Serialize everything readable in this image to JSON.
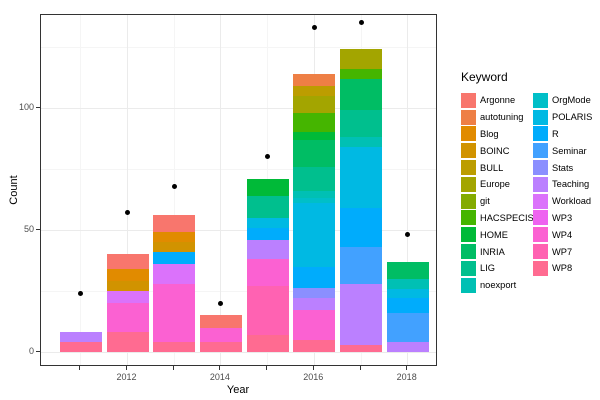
{
  "legend": {
    "title": "Keyword",
    "items": [
      {
        "label": "Argonne",
        "color": "#F8766D"
      },
      {
        "label": "autotuning",
        "color": "#EE7F45"
      },
      {
        "label": "Blog",
        "color": "#E18B00"
      },
      {
        "label": "BOINC",
        "color": "#D19300"
      },
      {
        "label": "BULL",
        "color": "#BC9D00"
      },
      {
        "label": "Europe",
        "color": "#A3A500"
      },
      {
        "label": "git",
        "color": "#84AB00"
      },
      {
        "label": "HACSPECIS",
        "color": "#45B500"
      },
      {
        "label": "HOME",
        "color": "#00BA38"
      },
      {
        "label": "INRIA",
        "color": "#00BD64"
      },
      {
        "label": "LIG",
        "color": "#00BF8E"
      },
      {
        "label": "noexport",
        "color": "#00C0B4"
      },
      {
        "label": "OrgMode",
        "color": "#00BFC8"
      },
      {
        "label": "POLARIS",
        "color": "#00B9E3"
      },
      {
        "label": "R",
        "color": "#00ACFC"
      },
      {
        "label": "Seminar",
        "color": "#42A1FF"
      },
      {
        "label": "Stats",
        "color": "#8B8FFF"
      },
      {
        "label": "Teaching",
        "color": "#BB80FF"
      },
      {
        "label": "Workload",
        "color": "#DB72FB"
      },
      {
        "label": "WP3",
        "color": "#EE63F0"
      },
      {
        "label": "WP4",
        "color": "#FB61D2"
      },
      {
        "label": "WP7",
        "color": "#FF62B2"
      },
      {
        "label": "WP8",
        "color": "#FF6B91"
      }
    ]
  },
  "chart_data": {
    "type": "bar",
    "stacked": true,
    "title": "",
    "xlabel": "Year",
    "ylabel": "Count",
    "all_years": [
      2011,
      2012,
      2013,
      2014,
      2015,
      2016,
      2017,
      2018
    ],
    "x_labeled_years": [
      2012,
      2014,
      2016,
      2018
    ],
    "x_tick_labels": [
      "2012",
      "2014",
      "2016",
      "2018"
    ],
    "y_tick_labels": [
      "0",
      "50",
      "100"
    ],
    "y_major_ticks": [
      0,
      50,
      100
    ],
    "y_minor_gridlines": [
      25,
      75,
      125
    ],
    "ylim": [
      -6,
      138
    ],
    "grid": true,
    "legend_position": "right",
    "point_color": "#000000",
    "bars": [
      {
        "year": 2011,
        "total": 8,
        "segments": [
          {
            "keyword": "Teaching",
            "value": 4
          },
          {
            "keyword": "WP8",
            "value": 4
          }
        ]
      },
      {
        "year": 2012,
        "total": 40,
        "segments": [
          {
            "keyword": "Argonne",
            "value": 6
          },
          {
            "keyword": "Blog",
            "value": 5
          },
          {
            "keyword": "BOINC",
            "value": 4
          },
          {
            "keyword": "Workload",
            "value": 5
          },
          {
            "keyword": "WP4",
            "value": 12
          },
          {
            "keyword": "WP8",
            "value": 8
          }
        ]
      },
      {
        "year": 2013,
        "total": 56,
        "segments": [
          {
            "keyword": "Argonne",
            "value": 7
          },
          {
            "keyword": "Blog",
            "value": 4
          },
          {
            "keyword": "BOINC",
            "value": 4
          },
          {
            "keyword": "R",
            "value": 5
          },
          {
            "keyword": "Workload",
            "value": 8
          },
          {
            "keyword": "WP4",
            "value": 24
          },
          {
            "keyword": "WP8",
            "value": 4
          }
        ]
      },
      {
        "year": 2014,
        "total": 15,
        "segments": [
          {
            "keyword": "Argonne",
            "value": 5
          },
          {
            "keyword": "WP4",
            "value": 6
          },
          {
            "keyword": "WP8",
            "value": 4
          }
        ]
      },
      {
        "year": 2015,
        "total": 71,
        "segments": [
          {
            "keyword": "HOME",
            "value": 7
          },
          {
            "keyword": "LIG",
            "value": 9
          },
          {
            "keyword": "POLARIS",
            "value": 4
          },
          {
            "keyword": "R",
            "value": 5
          },
          {
            "keyword": "Teaching",
            "value": 8
          },
          {
            "keyword": "WP4",
            "value": 11
          },
          {
            "keyword": "WP7",
            "value": 20
          },
          {
            "keyword": "WP8",
            "value": 7
          }
        ]
      },
      {
        "year": 2016,
        "total": 114,
        "segments": [
          {
            "keyword": "autotuning",
            "value": 5
          },
          {
            "keyword": "BULL",
            "value": 4
          },
          {
            "keyword": "Europe",
            "value": 7
          },
          {
            "keyword": "HACSPECIS",
            "value": 8
          },
          {
            "keyword": "HOME",
            "value": 3
          },
          {
            "keyword": "INRIA",
            "value": 11
          },
          {
            "keyword": "LIG",
            "value": 10
          },
          {
            "keyword": "noexport",
            "value": 3
          },
          {
            "keyword": "OrgMode",
            "value": 2
          },
          {
            "keyword": "POLARIS",
            "value": 26
          },
          {
            "keyword": "R",
            "value": 9
          },
          {
            "keyword": "Stats",
            "value": 4
          },
          {
            "keyword": "Teaching",
            "value": 5
          },
          {
            "keyword": "WP4",
            "value": 12
          },
          {
            "keyword": "WP8",
            "value": 5
          }
        ]
      },
      {
        "year": 2017,
        "total": 124,
        "segments": [
          {
            "keyword": "Europe",
            "value": 8
          },
          {
            "keyword": "HACSPECIS",
            "value": 4
          },
          {
            "keyword": "INRIA",
            "value": 13
          },
          {
            "keyword": "LIG",
            "value": 11
          },
          {
            "keyword": "noexport",
            "value": 4
          },
          {
            "keyword": "POLARIS",
            "value": 25
          },
          {
            "keyword": "R",
            "value": 16
          },
          {
            "keyword": "Seminar",
            "value": 15
          },
          {
            "keyword": "Teaching",
            "value": 25
          },
          {
            "keyword": "WP8",
            "value": 3
          }
        ]
      },
      {
        "year": 2018,
        "total": 37,
        "segments": [
          {
            "keyword": "INRIA",
            "value": 7
          },
          {
            "keyword": "noexport",
            "value": 4
          },
          {
            "keyword": "POLARIS",
            "value": 4
          },
          {
            "keyword": "R",
            "value": 6
          },
          {
            "keyword": "Seminar",
            "value": 12
          },
          {
            "keyword": "Teaching",
            "value": 4
          }
        ]
      }
    ],
    "points": [
      {
        "year": 2011,
        "value": 24
      },
      {
        "year": 2012,
        "value": 57
      },
      {
        "year": 2013,
        "value": 68
      },
      {
        "year": 2014,
        "value": 20
      },
      {
        "year": 2015,
        "value": 80
      },
      {
        "year": 2016,
        "value": 133
      },
      {
        "year": 2017,
        "value": 135
      },
      {
        "year": 2018,
        "value": 48
      }
    ]
  }
}
